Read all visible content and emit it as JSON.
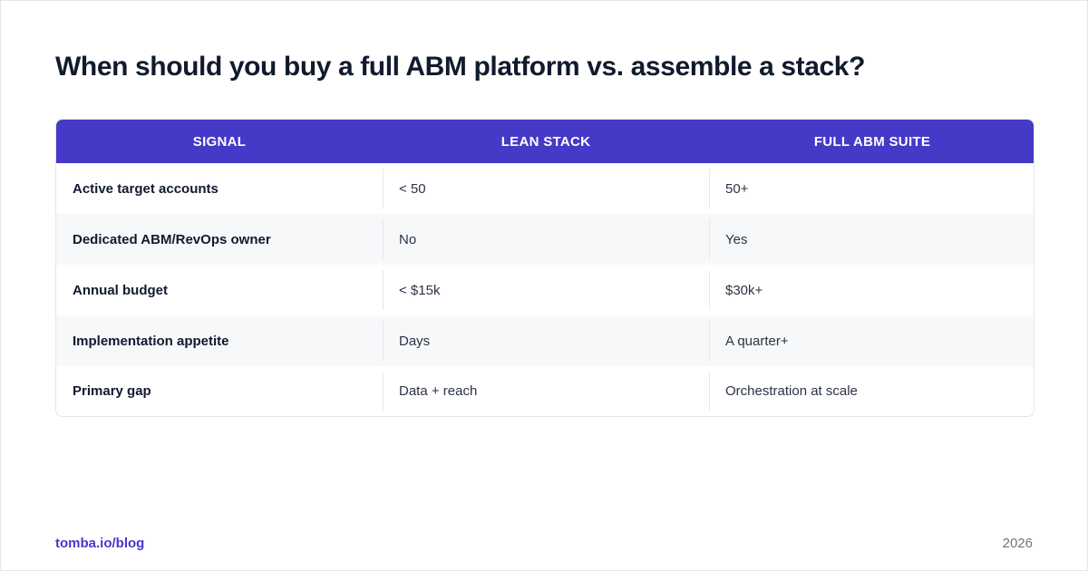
{
  "title": "When should you buy a full ABM platform vs. assemble a stack?",
  "table": {
    "headers": [
      "SIGNAL",
      "LEAN STACK",
      "FULL ABM SUITE"
    ],
    "rows": [
      {
        "signal": "Active target accounts",
        "lean": "< 50",
        "full": "50+"
      },
      {
        "signal": "Dedicated ABM/RevOps owner",
        "lean": "No",
        "full": "Yes"
      },
      {
        "signal": "Annual budget",
        "lean": "< $15k",
        "full": "$30k+"
      },
      {
        "signal": "Implementation appetite",
        "lean": "Days",
        "full": "A quarter+"
      },
      {
        "signal": "Primary gap",
        "lean": "Data + reach",
        "full": "Orchestration at scale"
      }
    ]
  },
  "footer": {
    "link": "tomba.io/blog",
    "year": "2026"
  },
  "colors": {
    "header_bg": "#4539c8",
    "title": "#111a2e",
    "link": "#4539c8",
    "alt_row": "#f7f8fa"
  }
}
